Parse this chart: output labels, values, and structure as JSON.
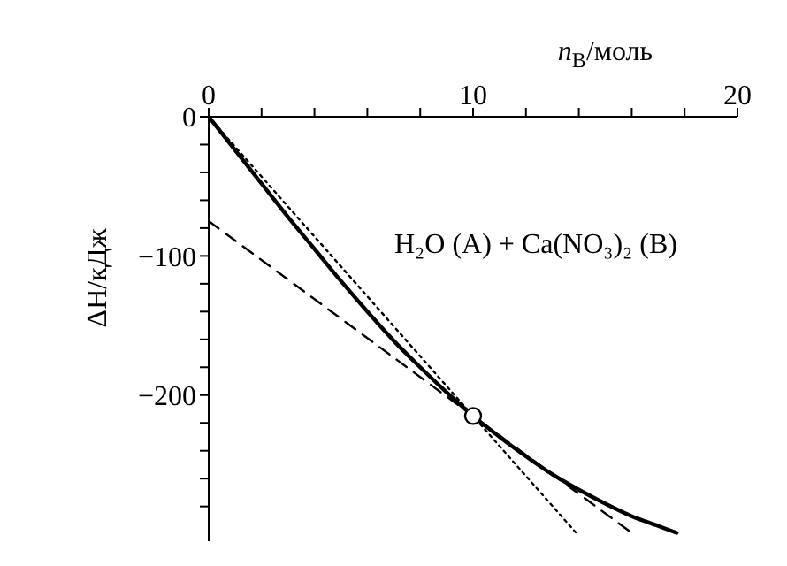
{
  "chart_data": {
    "type": "line",
    "xlabel": "n$_{В}$/моль",
    "ylabel": "ΔH/кДж",
    "annotations": [
      "H₂O (A) + Ca(NO₃)₂ (B)"
    ],
    "xlim": [
      0,
      20
    ],
    "ylim": [
      -305,
      0
    ],
    "xticks": [
      0,
      {
        "value": 2,
        "label": null
      },
      {
        "value": 4,
        "label": null
      },
      {
        "value": 6,
        "label": null
      },
      {
        "value": 8,
        "label": null
      },
      10,
      {
        "value": 12,
        "label": null
      },
      {
        "value": 14,
        "label": null
      },
      {
        "value": 16,
        "label": null
      },
      {
        "value": 18,
        "label": null
      },
      20
    ],
    "yticks": [
      0,
      {
        "value": -20,
        "label": null
      },
      {
        "value": -40,
        "label": null
      },
      {
        "value": -60,
        "label": null
      },
      {
        "value": -80,
        "label": null
      },
      -100,
      {
        "value": -120,
        "label": null
      },
      {
        "value": -140,
        "label": null
      },
      {
        "value": -160,
        "label": null
      },
      {
        "value": -180,
        "label": null
      },
      -200,
      {
        "value": -220,
        "label": null
      },
      {
        "value": -240,
        "label": null
      },
      {
        "value": -260,
        "label": null
      },
      {
        "value": -280,
        "label": null
      }
    ],
    "grid": false,
    "marker": "none",
    "series": [
      {
        "color": "#000000",
        "line_style": "solid",
        "x": [
          0,
          1,
          2,
          3,
          4,
          5,
          6,
          7,
          8,
          9,
          10,
          11,
          12,
          13,
          14,
          15,
          16,
          17,
          17.7
        ],
        "values": [
          0,
          -24,
          -48,
          -72,
          -95,
          -118,
          -140,
          -161,
          -180,
          -198,
          -215,
          -230,
          -244,
          -257,
          -268,
          -278,
          -287,
          -294,
          -299
        ]
      },
      {
        "color": "#000000",
        "line_style": "dotted",
        "x": [
          0,
          13.9
        ],
        "values": [
          0,
          -299
        ]
      },
      {
        "color": "#000000",
        "line_style": "dashed",
        "x": [
          0,
          16
        ],
        "values": [
          -75,
          -299
        ]
      },
      {
        "type": "scatter",
        "color": "#000000",
        "marker": "circle",
        "x": [
          10
        ],
        "values": [
          -215
        ]
      }
    ]
  }
}
